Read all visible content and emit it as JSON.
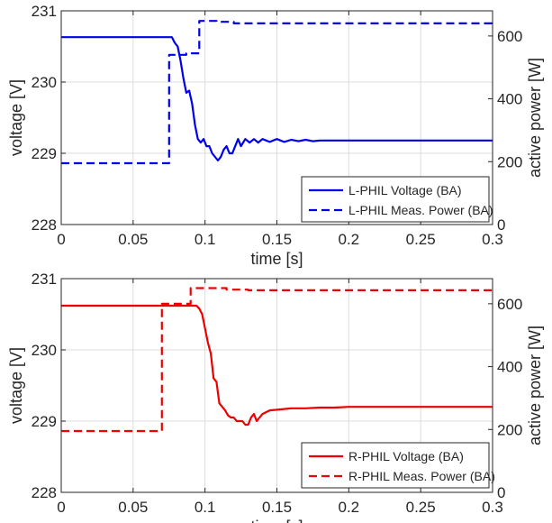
{
  "chart_data": [
    {
      "type": "line",
      "xlabel": "time [s]",
      "ylabel_left": "voltage [V]",
      "ylabel_right": "active power [W]",
      "xlim": [
        0,
        0.3
      ],
      "ylim_left": [
        228,
        231
      ],
      "ylim_right": [
        0,
        680
      ],
      "xticks": [
        "0",
        "0.05",
        "0.1",
        "0.15",
        "0.2",
        "0.25",
        "0.3"
      ],
      "yticks_left": [
        "228",
        "229",
        "230",
        "231"
      ],
      "yticks_right": [
        "0",
        "200",
        "400",
        "600"
      ],
      "grid": true,
      "legend": "bottom-right",
      "series": [
        {
          "name": "L-PHIL Voltage (BA)",
          "axis": "left",
          "color": "#0000ee",
          "style": "solid",
          "x": [
            0,
            0.077,
            0.079,
            0.081,
            0.083,
            0.085,
            0.087,
            0.089,
            0.091,
            0.093,
            0.095,
            0.097,
            0.099,
            0.101,
            0.103,
            0.105,
            0.107,
            0.109,
            0.111,
            0.113,
            0.115,
            0.117,
            0.119,
            0.121,
            0.123,
            0.125,
            0.128,
            0.131,
            0.134,
            0.137,
            0.14,
            0.145,
            0.15,
            0.155,
            0.16,
            0.165,
            0.17,
            0.175,
            0.18,
            0.19,
            0.2,
            0.22,
            0.25,
            0.3
          ],
          "y": [
            230.63,
            230.63,
            230.55,
            230.5,
            230.3,
            230.05,
            229.85,
            229.88,
            229.7,
            229.4,
            229.2,
            229.15,
            229.2,
            229.1,
            229.1,
            229.0,
            228.95,
            228.9,
            228.95,
            229.05,
            229.1,
            229.0,
            229.0,
            229.1,
            229.2,
            229.1,
            229.2,
            229.15,
            229.2,
            229.15,
            229.2,
            229.16,
            229.2,
            229.16,
            229.19,
            229.17,
            229.19,
            229.17,
            229.18,
            229.18,
            229.18,
            229.18,
            229.18,
            229.18
          ]
        },
        {
          "name": "L-PHIL Meas. Power (BA)",
          "axis": "right",
          "color": "#0000ee",
          "style": "dashed",
          "x": [
            0,
            0.075,
            0.075,
            0.087,
            0.087,
            0.096,
            0.096,
            0.108,
            0.108,
            0.12,
            0.12,
            0.3
          ],
          "y": [
            195,
            195,
            540,
            540,
            545,
            545,
            648,
            648,
            645,
            645,
            640,
            640
          ]
        }
      ]
    },
    {
      "type": "line",
      "xlabel": "time [s]",
      "ylabel_left": "voltage [V]",
      "ylabel_right": "active power [W]",
      "xlim": [
        0,
        0.3
      ],
      "ylim_left": [
        228,
        231
      ],
      "ylim_right": [
        0,
        680
      ],
      "xticks": [
        "0",
        "0.05",
        "0.1",
        "0.15",
        "0.2",
        "0.25",
        "0.3"
      ],
      "yticks_left": [
        "228",
        "229",
        "230",
        "231"
      ],
      "yticks_right": [
        "0",
        "200",
        "400",
        "600"
      ],
      "grid": true,
      "legend": "bottom-right",
      "series": [
        {
          "name": "R-PHIL Voltage (BA)",
          "axis": "left",
          "color": "#ee0000",
          "style": "solid",
          "x": [
            0,
            0.094,
            0.096,
            0.098,
            0.1,
            0.102,
            0.104,
            0.106,
            0.108,
            0.11,
            0.112,
            0.114,
            0.116,
            0.118,
            0.12,
            0.122,
            0.124,
            0.126,
            0.128,
            0.13,
            0.132,
            0.134,
            0.136,
            0.138,
            0.14,
            0.142,
            0.145,
            0.15,
            0.155,
            0.16,
            0.17,
            0.18,
            0.19,
            0.2,
            0.22,
            0.25,
            0.3
          ],
          "y": [
            230.62,
            230.62,
            230.58,
            230.5,
            230.3,
            230.1,
            229.95,
            229.6,
            229.55,
            229.25,
            229.2,
            229.15,
            229.08,
            229.05,
            229.05,
            229.0,
            229.0,
            229.0,
            228.95,
            228.95,
            229.05,
            229.1,
            229.0,
            229.05,
            229.1,
            229.12,
            229.15,
            229.16,
            229.17,
            229.18,
            229.18,
            229.19,
            229.19,
            229.2,
            229.2,
            229.2,
            229.2
          ]
        },
        {
          "name": "R-PHIL Meas. Power (BA)",
          "axis": "right",
          "color": "#ee0000",
          "style": "dashed",
          "x": [
            0,
            0.07,
            0.07,
            0.09,
            0.09,
            0.115,
            0.115,
            0.13,
            0.13,
            0.3
          ],
          "y": [
            195,
            195,
            600,
            600,
            650,
            650,
            645,
            645,
            643,
            643
          ]
        }
      ]
    }
  ]
}
